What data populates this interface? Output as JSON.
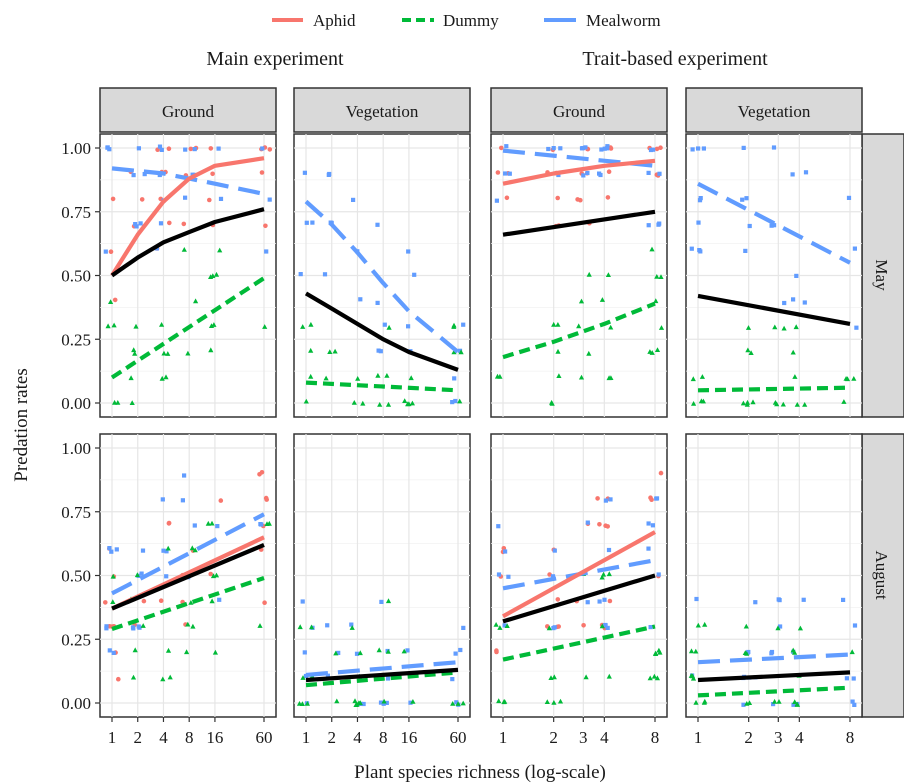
{
  "chart_data": {
    "type": "scatter",
    "legend": {
      "position": "top",
      "items": [
        {
          "label": "Aphid",
          "color": "#F8766D",
          "dash": "solid"
        },
        {
          "label": "Dummy",
          "color": "#00BA38",
          "dash": "dashed"
        },
        {
          "label": "Mealworm",
          "color": "#619CFF",
          "dash": "solid"
        }
      ]
    },
    "experiments": [
      "Main experiment",
      "Trait-based experiment"
    ],
    "habitats": [
      "Vegetation",
      "Ground"
    ],
    "col_strips": [
      "Ground",
      "Vegetation",
      "Ground",
      "Vegetation"
    ],
    "row_strips": [
      "May",
      "August"
    ],
    "xlabel": "Plant species richness (log-scale)",
    "ylabel": "Predation rates",
    "ylim": [
      0,
      1
    ],
    "y_ticks": [
      0,
      0.25,
      0.5,
      0.75,
      1
    ],
    "y_tick_labels": [
      "0.00",
      "0.25",
      "0.50",
      "0.75",
      "1.00"
    ],
    "x_scale": "log",
    "main_x_ticks": [
      1,
      2,
      4,
      8,
      16,
      60
    ],
    "main_x_tick_labels": [
      "1",
      "2",
      "4",
      "8",
      "16",
      "60"
    ],
    "main_xlim": [
      1,
      60
    ],
    "trait_x_ticks": [
      1,
      2,
      3,
      4,
      8
    ],
    "trait_x_tick_labels": [
      "1",
      "2",
      "3",
      "4",
      "8"
    ],
    "trait_xlim": [
      1,
      8
    ],
    "grid": true,
    "colors": {
      "Aphid": "#F8766D",
      "Dummy": "#00BA38",
      "Mealworm": "#619CFF",
      "Overall": "#000000"
    },
    "panels": [
      {
        "row": "May",
        "experiment": "Main experiment",
        "habitat": "Ground",
        "col": 0,
        "lines": [
          {
            "series": "Aphid",
            "x": [
              1,
              2,
              4,
              8,
              16,
              60
            ],
            "y": [
              0.5,
              0.66,
              0.79,
              0.88,
              0.93,
              0.96
            ]
          },
          {
            "series": "Dummy",
            "x": [
              1,
              60
            ],
            "y": [
              0.1,
              0.49
            ]
          },
          {
            "series": "Mealworm",
            "x": [
              1,
              2,
              4,
              8,
              16,
              60
            ],
            "y": [
              0.92,
              0.91,
              0.9,
              0.88,
              0.86,
              0.82
            ]
          },
          {
            "series": "Overall",
            "x": [
              1,
              2,
              4,
              8,
              16,
              60
            ],
            "y": [
              0.5,
              0.57,
              0.63,
              0.67,
              0.71,
              0.76
            ]
          }
        ]
      },
      {
        "row": "May",
        "experiment": "Main experiment",
        "habitat": "Vegetation",
        "col": 1,
        "lines": [
          {
            "series": "Dummy",
            "x": [
              1,
              60
            ],
            "y": [
              0.08,
              0.05
            ]
          },
          {
            "series": "Mealworm",
            "x": [
              1,
              2,
              4,
              8,
              16,
              60
            ],
            "y": [
              0.79,
              0.7,
              0.59,
              0.47,
              0.36,
              0.2
            ]
          },
          {
            "series": "Overall",
            "x": [
              1,
              2,
              4,
              8,
              16,
              60
            ],
            "y": [
              0.43,
              0.37,
              0.31,
              0.25,
              0.2,
              0.13
            ]
          }
        ]
      },
      {
        "row": "May",
        "experiment": "Trait-based experiment",
        "habitat": "Ground",
        "col": 2,
        "lines": [
          {
            "series": "Aphid",
            "x": [
              1,
              2,
              4,
              8
            ],
            "y": [
              0.86,
              0.9,
              0.93,
              0.95
            ]
          },
          {
            "series": "Dummy",
            "x": [
              1,
              2,
              4,
              8
            ],
            "y": [
              0.18,
              0.24,
              0.31,
              0.39
            ]
          },
          {
            "series": "Mealworm",
            "x": [
              1,
              8
            ],
            "y": [
              0.99,
              0.93
            ]
          },
          {
            "series": "Overall",
            "x": [
              1,
              8
            ],
            "y": [
              0.66,
              0.75
            ]
          }
        ]
      },
      {
        "row": "May",
        "experiment": "Trait-based experiment",
        "habitat": "Vegetation",
        "col": 3,
        "lines": [
          {
            "series": "Dummy",
            "x": [
              1,
              8
            ],
            "y": [
              0.05,
              0.06
            ]
          },
          {
            "series": "Mealworm",
            "x": [
              1,
              8
            ],
            "y": [
              0.86,
              0.55
            ]
          },
          {
            "series": "Overall",
            "x": [
              1,
              8
            ],
            "y": [
              0.42,
              0.31
            ]
          }
        ]
      },
      {
        "row": "August",
        "experiment": "Main experiment",
        "habitat": "Ground",
        "col": 0,
        "lines": [
          {
            "series": "Aphid",
            "x": [
              1,
              60
            ],
            "y": [
              0.37,
              0.65
            ]
          },
          {
            "series": "Dummy",
            "x": [
              1,
              60
            ],
            "y": [
              0.29,
              0.49
            ]
          },
          {
            "series": "Mealworm",
            "x": [
              1,
              60
            ],
            "y": [
              0.43,
              0.74
            ]
          },
          {
            "series": "Overall",
            "x": [
              1,
              60
            ],
            "y": [
              0.37,
              0.62
            ]
          }
        ]
      },
      {
        "row": "August",
        "experiment": "Main experiment",
        "habitat": "Vegetation",
        "col": 1,
        "lines": [
          {
            "series": "Dummy",
            "x": [
              1,
              60
            ],
            "y": [
              0.07,
              0.12
            ]
          },
          {
            "series": "Mealworm",
            "x": [
              1,
              60
            ],
            "y": [
              0.11,
              0.16
            ]
          },
          {
            "series": "Overall",
            "x": [
              1,
              60
            ],
            "y": [
              0.09,
              0.13
            ]
          }
        ]
      },
      {
        "row": "August",
        "experiment": "Trait-based experiment",
        "habitat": "Ground",
        "col": 2,
        "lines": [
          {
            "series": "Aphid",
            "x": [
              1,
              8
            ],
            "y": [
              0.34,
              0.67
            ]
          },
          {
            "series": "Dummy",
            "x": [
              1,
              8
            ],
            "y": [
              0.17,
              0.3
            ]
          },
          {
            "series": "Mealworm",
            "x": [
              1,
              8
            ],
            "y": [
              0.45,
              0.56
            ]
          },
          {
            "series": "Overall",
            "x": [
              1,
              8
            ],
            "y": [
              0.32,
              0.5
            ]
          }
        ]
      },
      {
        "row": "August",
        "experiment": "Trait-based experiment",
        "habitat": "Vegetation",
        "col": 3,
        "lines": [
          {
            "series": "Dummy",
            "x": [
              1,
              8
            ],
            "y": [
              0.03,
              0.06
            ]
          },
          {
            "series": "Mealworm",
            "x": [
              1,
              8
            ],
            "y": [
              0.16,
              0.19
            ]
          },
          {
            "series": "Overall",
            "x": [
              1,
              8
            ],
            "y": [
              0.09,
              0.12
            ]
          }
        ]
      }
    ]
  }
}
